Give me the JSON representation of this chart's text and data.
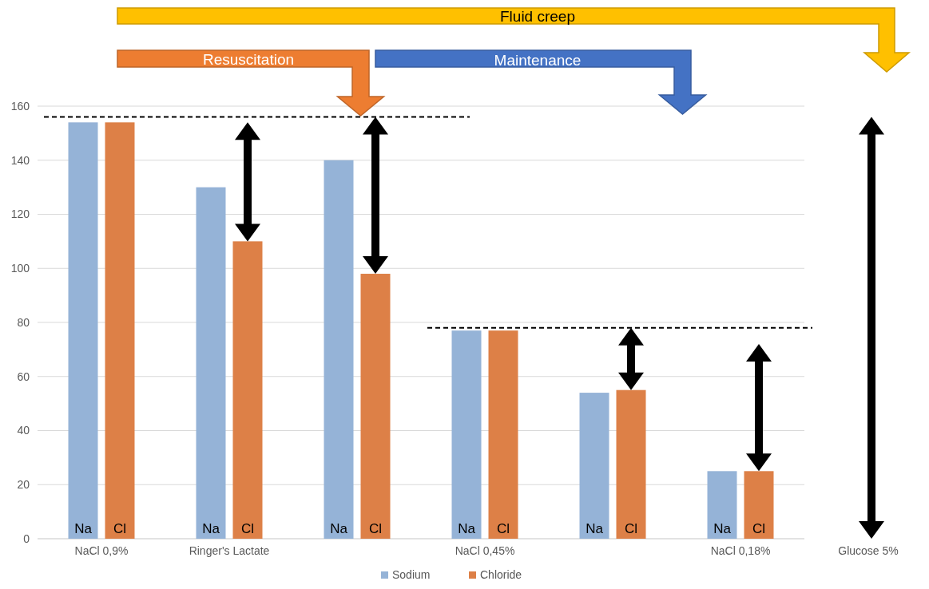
{
  "chart_data": {
    "type": "bar",
    "categories": [
      "NaCl 0,9%",
      "Ringer's Lactate",
      null,
      "NaCl 0,45%",
      null,
      "NaCl 0,18%",
      "Glucose 5%"
    ],
    "series": [
      {
        "name": "Sodium",
        "color": "#95b3d7",
        "values": [
          154,
          130,
          140,
          77,
          54,
          25,
          null
        ]
      },
      {
        "name": "Chloride",
        "color": "#dd8047",
        "values": [
          154,
          110,
          98,
          77,
          55,
          25,
          null
        ]
      }
    ],
    "ylim": [
      0,
      160
    ],
    "yticks": [
      0,
      20,
      40,
      60,
      80,
      100,
      120,
      140,
      160
    ],
    "grid": "y",
    "legend": "bottom",
    "ref_lines": [
      {
        "axis": "y",
        "value": 156,
        "color": "#000000",
        "line_style": "dashed"
      },
      {
        "axis": "y",
        "value": 78,
        "color": "#000000",
        "line_style": "dashed"
      }
    ],
    "annotations": [
      "Fluid creep",
      "Resuscitation",
      "Maintenance",
      "Na",
      "Cl",
      "Na",
      "Cl",
      "Na",
      "Cl",
      "Na",
      "Cl",
      "Na",
      "Cl",
      "Na",
      "Cl"
    ]
  }
}
